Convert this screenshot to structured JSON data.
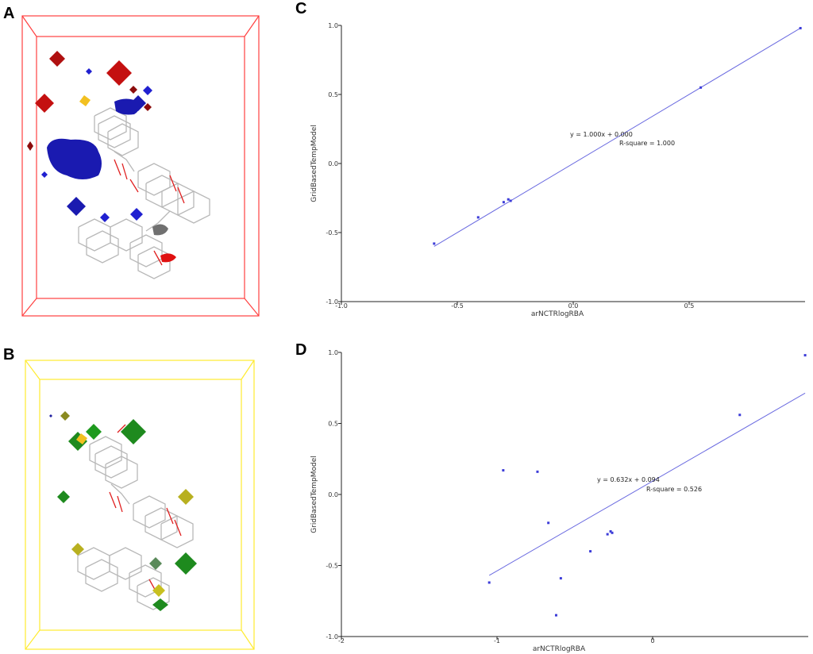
{
  "panels": {
    "A": {
      "letter": "A",
      "box_color": "#ff3b3b"
    },
    "B": {
      "letter": "B",
      "box_color": "#ffef3a"
    },
    "C": {
      "letter": "C"
    },
    "D": {
      "letter": "D"
    }
  },
  "chart_data": [
    {
      "id": "C",
      "type": "scatter",
      "xlabel": "arNCTRlogRBA",
      "ylabel": "GridBasedTempModel",
      "xlim": [
        -1.0,
        1.0
      ],
      "ylim": [
        -1.0,
        1.0
      ],
      "xticks": [
        -1.0,
        -0.5,
        0.0,
        0.5
      ],
      "xtick_labels": [
        "-1.0",
        "-0.5",
        "0.0",
        "0.5"
      ],
      "yticks": [
        -1.0,
        -0.5,
        0.0,
        0.5,
        1.0
      ],
      "ytick_labels": [
        "-1.0",
        "-0.5",
        "0.0",
        "0.5",
        "1.0"
      ],
      "points": [
        {
          "x": -0.6,
          "y": -0.58
        },
        {
          "x": -0.41,
          "y": -0.39
        },
        {
          "x": -0.3,
          "y": -0.28
        },
        {
          "x": -0.28,
          "y": -0.26
        },
        {
          "x": -0.27,
          "y": -0.27
        },
        {
          "x": 0.55,
          "y": 0.55
        },
        {
          "x": 0.98,
          "y": 0.98
        }
      ],
      "fit": {
        "slope": 1.0,
        "intercept": 0.0,
        "x_range": [
          -0.6,
          0.98
        ]
      },
      "equation_label": "y = 1.000x + 0.000",
      "r2_label": "R-square = 1.000",
      "color": "#3c3cd8"
    },
    {
      "id": "D",
      "type": "scatter",
      "xlabel": "arNCTRlogRBA",
      "ylabel": "GridBasedTempModel",
      "xlim": [
        -2.0,
        1.0
      ],
      "ylim": [
        -1.0,
        1.0
      ],
      "xticks": [
        -2,
        -1,
        0
      ],
      "xtick_labels": [
        "-2",
        "-1",
        "0"
      ],
      "yticks": [
        -1.0,
        -0.5,
        0.0,
        0.5,
        1.0
      ],
      "ytick_labels": [
        "-1.0",
        "-0.5",
        "0.0",
        "0.5",
        "1.0"
      ],
      "points": [
        {
          "x": -1.05,
          "y": -0.62
        },
        {
          "x": -0.96,
          "y": 0.17
        },
        {
          "x": -0.74,
          "y": 0.16
        },
        {
          "x": -0.67,
          "y": -0.2
        },
        {
          "x": -0.62,
          "y": -0.85
        },
        {
          "x": -0.59,
          "y": -0.59
        },
        {
          "x": -0.4,
          "y": -0.4
        },
        {
          "x": -0.29,
          "y": -0.28
        },
        {
          "x": -0.27,
          "y": -0.26
        },
        {
          "x": -0.26,
          "y": -0.27
        },
        {
          "x": 0.56,
          "y": 0.56
        },
        {
          "x": 0.98,
          "y": 0.98
        }
      ],
      "fit": {
        "slope": 0.632,
        "intercept": 0.094,
        "x_range": [
          -1.05,
          0.98
        ]
      },
      "equation_label": "y = 0.632x + 0.094",
      "r2_label": "R-square = 0.526",
      "color": "#3c3cd8"
    }
  ]
}
